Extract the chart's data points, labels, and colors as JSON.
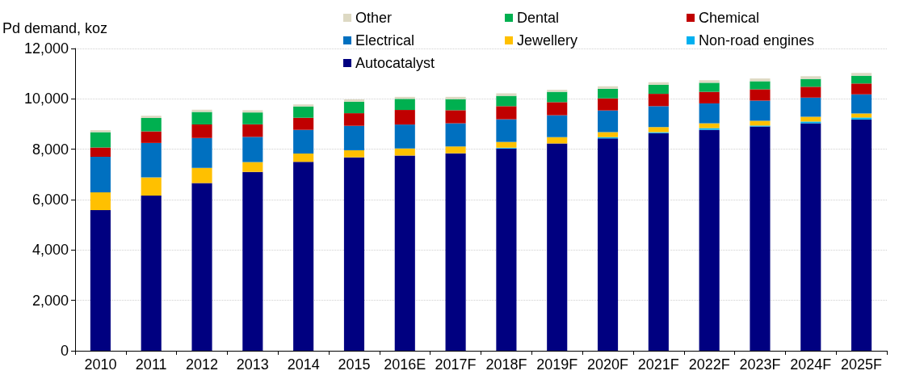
{
  "chart_data": {
    "type": "bar",
    "stacked": true,
    "ylabel": "Pd demand, koz",
    "categories": [
      "2010",
      "2011",
      "2012",
      "2013",
      "2014",
      "2015",
      "2016E",
      "2017F",
      "2018F",
      "2019F",
      "2020F",
      "2021F",
      "2022F",
      "2023F",
      "2024F",
      "2025F"
    ],
    "series": [
      {
        "name": "Autocatalyst",
        "color": "#000080",
        "values": [
          5580,
          6160,
          6660,
          7100,
          7500,
          7680,
          7750,
          7840,
          8030,
          8230,
          8430,
          8640,
          8770,
          8900,
          9030,
          9180
        ]
      },
      {
        "name": "Non-road engines",
        "color": "#00b0f0",
        "values": [
          null,
          null,
          null,
          null,
          null,
          null,
          null,
          null,
          30,
          null,
          50,
          40,
          70,
          40,
          70,
          80
        ]
      },
      {
        "name": "Jewellery",
        "color": "#ffc000",
        "values": [
          710,
          720,
          600,
          390,
          330,
          280,
          280,
          270,
          230,
          250,
          200,
          200,
          190,
          190,
          190,
          160
        ]
      },
      {
        "name": "Electrical",
        "color": "#0070c0",
        "values": [
          1410,
          1370,
          1190,
          1000,
          940,
          970,
          950,
          920,
          900,
          870,
          860,
          830,
          790,
          800,
          760,
          760
        ]
      },
      {
        "name": "Chemical",
        "color": "#c00000",
        "values": [
          370,
          460,
          530,
          500,
          480,
          500,
          580,
          520,
          520,
          520,
          480,
          490,
          460,
          450,
          430,
          430
        ]
      },
      {
        "name": "Dental",
        "color": "#00b050",
        "values": [
          610,
          530,
          500,
          470,
          450,
          460,
          440,
          440,
          410,
          410,
          380,
          360,
          360,
          320,
          310,
          310
        ]
      },
      {
        "name": "Other",
        "color": "#ddd9c3",
        "values": [
          80,
          90,
          90,
          90,
          80,
          90,
          80,
          90,
          100,
          80,
          100,
          100,
          100,
          110,
          110,
          110
        ]
      }
    ],
    "ylim": [
      0,
      12000
    ],
    "yticks": [
      0,
      {
        "value": 2000,
        "label": "2,000"
      },
      {
        "value": 4000,
        "label": "4,000"
      },
      {
        "value": 6000,
        "label": "6,000"
      },
      {
        "value": 8000,
        "label": "8,000"
      },
      {
        "value": 10000,
        "label": "10,000"
      },
      {
        "value": 12000,
        "label": "12,000"
      }
    ],
    "grid": "y",
    "legend": "top"
  }
}
